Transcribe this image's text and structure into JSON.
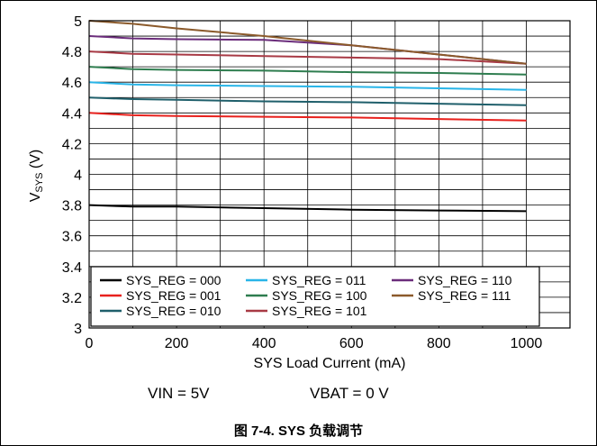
{
  "conditions": {
    "vin": "VIN = 5V",
    "vbat": "VBAT = 0 V"
  },
  "caption": "图 7-4. SYS 负载调节",
  "chart_data": {
    "type": "line",
    "title": "",
    "xlabel": "SYS Load Current (mA)",
    "ylabel": {
      "base": "V",
      "subscript": "SYS",
      "unit": " (V)"
    },
    "xlim": [
      0,
      1100
    ],
    "ylim": [
      3,
      5
    ],
    "x_ticks": [
      0,
      200,
      400,
      600,
      800,
      1000
    ],
    "y_ticks": [
      3,
      3.2,
      3.4,
      3.6,
      3.8,
      4,
      4.2,
      4.4,
      4.6,
      4.8,
      5
    ],
    "x_tick_labels": [
      "0",
      "200",
      "400",
      "600",
      "800",
      "1000"
    ],
    "y_tick_labels": [
      "3",
      "3.2",
      "3.4",
      "3.6",
      "3.8",
      "4",
      "4.2",
      "4.4",
      "4.6",
      "4.8",
      "5"
    ],
    "grid": true,
    "legend_position": "bottom-left",
    "series": [
      {
        "name": "SYS_REG = 000",
        "color": "#000000",
        "x": [
          0,
          100,
          200,
          400,
          600,
          800,
          1000
        ],
        "values": [
          3.8,
          3.79,
          3.79,
          3.78,
          3.77,
          3.765,
          3.76
        ]
      },
      {
        "name": "SYS_REG = 001",
        "color": "#e8211d",
        "x": [
          0,
          100,
          200,
          400,
          600,
          800,
          1000
        ],
        "values": [
          4.4,
          4.385,
          4.38,
          4.375,
          4.37,
          4.36,
          4.35
        ]
      },
      {
        "name": "SYS_REG = 010",
        "color": "#1f5f6b",
        "x": [
          0,
          100,
          200,
          400,
          600,
          800,
          1000
        ],
        "values": [
          4.5,
          4.49,
          4.485,
          4.475,
          4.47,
          4.46,
          4.45
        ]
      },
      {
        "name": "SYS_REG = 011",
        "color": "#29b5e8",
        "x": [
          0,
          100,
          200,
          400,
          600,
          800,
          1000
        ],
        "values": [
          4.6,
          4.585,
          4.58,
          4.575,
          4.57,
          4.56,
          4.55
        ]
      },
      {
        "name": "SYS_REG = 100",
        "color": "#2e7d4f",
        "x": [
          0,
          100,
          200,
          400,
          600,
          800,
          1000
        ],
        "values": [
          4.7,
          4.685,
          4.68,
          4.675,
          4.665,
          4.66,
          4.65
        ]
      },
      {
        "name": "SYS_REG = 101",
        "color": "#a83a45",
        "x": [
          0,
          100,
          200,
          400,
          600,
          800,
          1000
        ],
        "values": [
          4.8,
          4.785,
          4.78,
          4.77,
          4.76,
          4.75,
          4.72
        ]
      },
      {
        "name": "SYS_REG = 110",
        "color": "#6b2d7b",
        "x": [
          0,
          100,
          200,
          400,
          600,
          800,
          1000
        ],
        "values": [
          4.9,
          4.885,
          4.88,
          4.875,
          4.84,
          4.78,
          4.72
        ]
      },
      {
        "name": "SYS_REG = 111",
        "color": "#8b5a2b",
        "x": [
          0,
          100,
          200,
          400,
          600,
          800,
          1000
        ],
        "values": [
          5.0,
          4.98,
          4.95,
          4.9,
          4.84,
          4.78,
          4.72
        ]
      }
    ]
  }
}
